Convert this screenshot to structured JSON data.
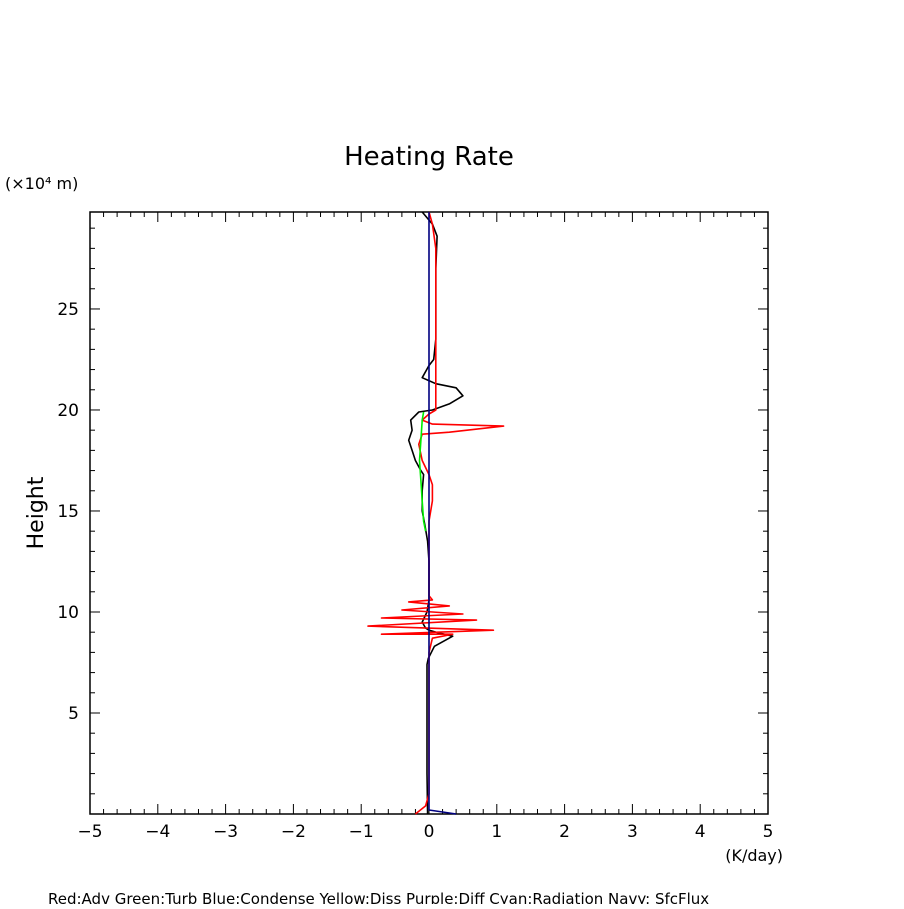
{
  "chart_data": {
    "type": "line",
    "title": "Heating Rate",
    "ylabel": "Height",
    "y_unit_label": "(×10⁴ m)",
    "x_unit_label": "(K/day)",
    "legend_text": "Red:Adv  Green:Turb  Blue:Condense  Yellow:Diss  Purple:Diff  Cyan:Radiation  Navy: SfcFlux",
    "xlim": [
      -5,
      5
    ],
    "ylim": [
      0,
      29.8
    ],
    "x_ticks": [
      "-5",
      "-4",
      "-3",
      "-2",
      "-1",
      "0",
      "1",
      "2",
      "3",
      "4",
      "5"
    ],
    "y_ticks": [
      "5",
      "10",
      "15",
      "20",
      "25"
    ],
    "x_tick_values": [
      -5,
      -4,
      -3,
      -2,
      -1,
      0,
      1,
      2,
      3,
      4,
      5
    ],
    "y_tick_values": [
      5,
      10,
      15,
      20,
      25
    ],
    "grid": false,
    "series": [
      {
        "color": "#000000",
        "points": [
          [
            -0.02,
            0
          ],
          [
            -0.03,
            2
          ],
          [
            -0.03,
            5
          ],
          [
            -0.03,
            7.4
          ],
          [
            -0.01,
            7.7
          ],
          [
            0.08,
            8.3
          ],
          [
            0.35,
            8.8
          ],
          [
            0.1,
            9.0
          ],
          [
            0.0,
            9.1
          ],
          [
            -0.05,
            9.2
          ],
          [
            -0.1,
            9.5
          ],
          [
            -0.03,
            10.0
          ],
          [
            0.0,
            10.6
          ],
          [
            0.0,
            11.0
          ],
          [
            0.0,
            12.5
          ],
          [
            -0.02,
            13.5
          ],
          [
            -0.06,
            14.3
          ],
          [
            -0.1,
            15.0
          ],
          [
            -0.1,
            16.0
          ],
          [
            -0.08,
            16.8
          ],
          [
            -0.12,
            17.0
          ],
          [
            -0.2,
            17.5
          ],
          [
            -0.25,
            18.0
          ],
          [
            -0.3,
            18.5
          ],
          [
            -0.25,
            19.0
          ],
          [
            -0.27,
            19.5
          ],
          [
            -0.15,
            19.9
          ],
          [
            0.05,
            20.0
          ],
          [
            0.3,
            20.3
          ],
          [
            0.5,
            20.7
          ],
          [
            0.4,
            21.1
          ],
          [
            0.1,
            21.3
          ],
          [
            -0.1,
            21.6
          ],
          [
            0.0,
            22.2
          ],
          [
            0.07,
            22.5
          ],
          [
            0.1,
            23.5
          ],
          [
            0.1,
            25.0
          ],
          [
            0.1,
            27.0
          ],
          [
            0.12,
            28.6
          ],
          [
            0.05,
            29.2
          ],
          [
            -0.1,
            29.8
          ]
        ]
      },
      {
        "color": "#ff0000",
        "points": [
          [
            -0.2,
            0
          ],
          [
            -0.05,
            0.4
          ],
          [
            0.0,
            1.0
          ],
          [
            0.0,
            5.0
          ],
          [
            0.0,
            8.0
          ],
          [
            0.05,
            8.7
          ],
          [
            0.35,
            8.9
          ],
          [
            -0.7,
            8.9
          ],
          [
            0.95,
            9.1
          ],
          [
            -0.9,
            9.3
          ],
          [
            0.7,
            9.6
          ],
          [
            -0.7,
            9.7
          ],
          [
            0.5,
            9.9
          ],
          [
            -0.4,
            10.1
          ],
          [
            0.3,
            10.3
          ],
          [
            -0.3,
            10.5
          ],
          [
            0.05,
            10.6
          ],
          [
            0.0,
            10.8
          ],
          [
            0.0,
            12.0
          ],
          [
            0.0,
            13.0
          ],
          [
            0.0,
            14.5
          ],
          [
            0.05,
            15.5
          ],
          [
            0.05,
            16.3
          ],
          [
            0.0,
            16.8
          ],
          [
            -0.1,
            17.5
          ],
          [
            -0.15,
            18.3
          ],
          [
            -0.1,
            18.8
          ],
          [
            0.3,
            18.9
          ],
          [
            1.1,
            19.2
          ],
          [
            0.05,
            19.3
          ],
          [
            -0.1,
            19.5
          ],
          [
            0.0,
            19.8
          ],
          [
            0.1,
            20.0
          ],
          [
            0.1,
            21.0
          ],
          [
            0.1,
            22.0
          ],
          [
            0.1,
            24.0
          ],
          [
            0.1,
            26.0
          ],
          [
            0.1,
            28.0
          ],
          [
            0.05,
            29.2
          ],
          [
            0.0,
            29.8
          ]
        ]
      },
      {
        "color": "#00ee00",
        "points": [
          [
            -0.05,
            14.0
          ],
          [
            -0.08,
            14.5
          ],
          [
            -0.1,
            15.5
          ],
          [
            -0.12,
            16.5
          ],
          [
            -0.14,
            17.5
          ],
          [
            -0.12,
            18.5
          ],
          [
            -0.1,
            19.5
          ],
          [
            -0.08,
            19.9
          ]
        ]
      },
      {
        "color": "#000080",
        "points": [
          [
            0.4,
            0
          ],
          [
            0.0,
            0.2
          ],
          [
            0.0,
            29.8
          ]
        ]
      }
    ]
  }
}
